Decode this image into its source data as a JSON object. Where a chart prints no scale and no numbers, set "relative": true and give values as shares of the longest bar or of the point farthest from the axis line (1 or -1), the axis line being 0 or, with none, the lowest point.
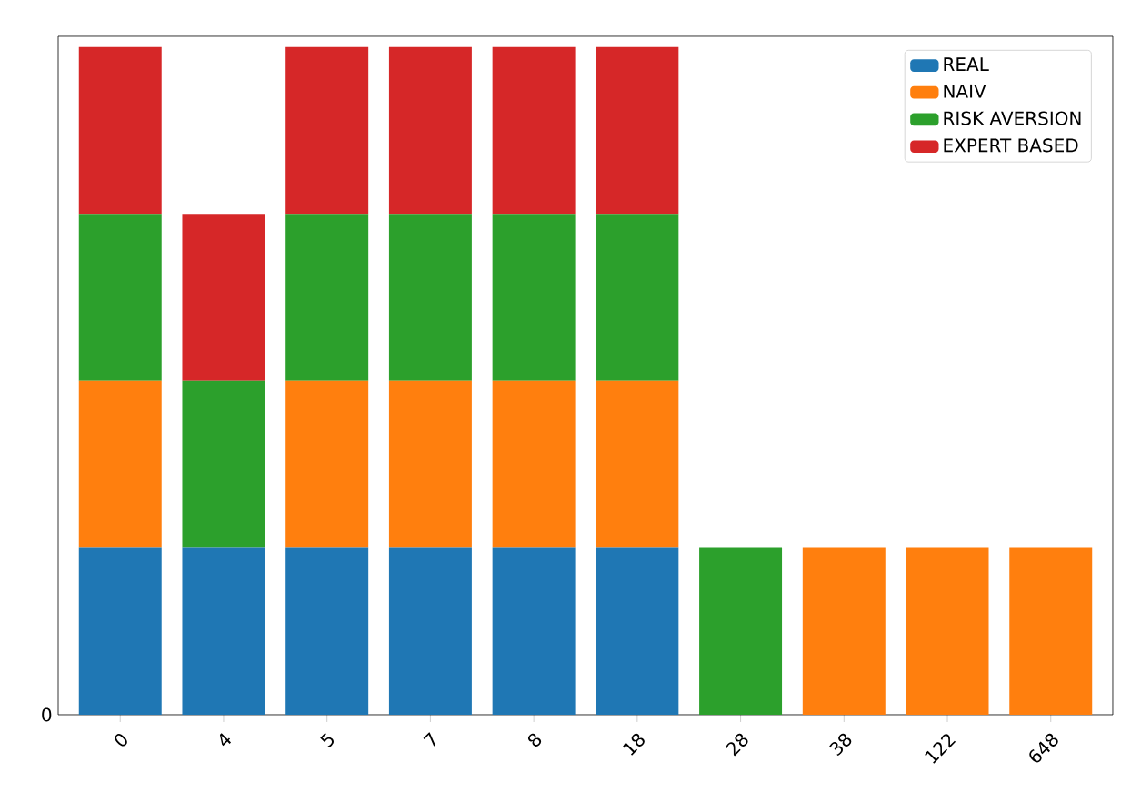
{
  "chart_data": {
    "type": "bar",
    "stacked": true,
    "relative": true,
    "annotations": [
      "0"
    ],
    "legend": "top right",
    "categories": [
      "0",
      "4",
      "5",
      "7",
      "8",
      "18",
      "28",
      "38",
      "122",
      "648"
    ],
    "series": [
      {
        "name": "REAL",
        "color": "#1f77b4",
        "values": [
          0.25,
          0.25,
          0.25,
          0.25,
          0.25,
          0.25,
          0,
          0,
          0,
          0
        ]
      },
      {
        "name": "NAIV",
        "color": "#ff7f0e",
        "values": [
          0.25,
          0,
          0.25,
          0.25,
          0.25,
          0.25,
          0,
          0.25,
          0.25,
          0.25
        ]
      },
      {
        "name": "RISK AVERSION",
        "color": "#2ca02c",
        "values": [
          0.25,
          0.25,
          0.25,
          0.25,
          0.25,
          0.25,
          0.25,
          0,
          0,
          0
        ]
      },
      {
        "name": "EXPERT BASED",
        "color": "#d62728",
        "values": [
          0.25,
          0.25,
          0.25,
          0.25,
          0.25,
          0.25,
          0,
          0,
          0,
          0
        ]
      }
    ]
  }
}
